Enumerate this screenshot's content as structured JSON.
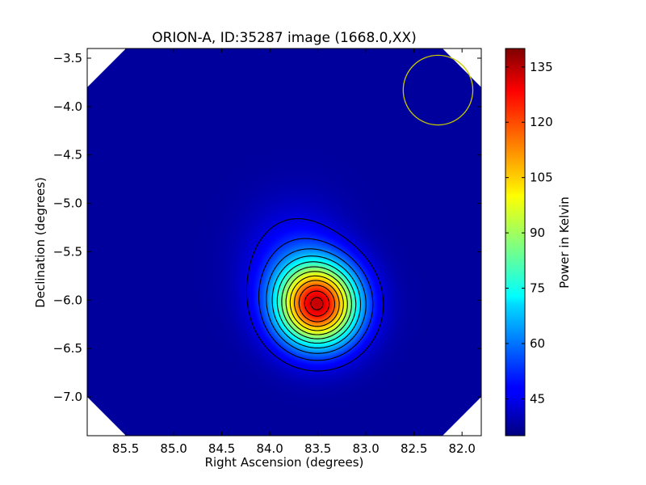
{
  "chart_data": {
    "type": "heatmap",
    "title": "ORION-A, ID:35287 image (1668.0,XX)",
    "xlabel": "Right Ascension (degrees)",
    "ylabel": "Declination (degrees)",
    "xlim": [
      85.9,
      81.8
    ],
    "ylim": [
      -7.4,
      -3.4
    ],
    "x_ticks": [
      85.5,
      85.0,
      84.5,
      84.0,
      83.5,
      83.0,
      82.5,
      82.0
    ],
    "x_tick_labels": [
      "85.5",
      "85.0",
      "84.5",
      "84.0",
      "83.5",
      "83.0",
      "82.5",
      "82.0"
    ],
    "y_ticks": [
      -3.5,
      -4.0,
      -4.5,
      -5.0,
      -5.5,
      -6.0,
      -6.5,
      -7.0
    ],
    "y_tick_labels": [
      "−3.5",
      "−4.0",
      "−4.5",
      "−5.0",
      "−5.5",
      "−6.0",
      "−6.5",
      "−7.0"
    ],
    "colorbar": {
      "label": "Power in Kelvin",
      "range": [
        35,
        140
      ],
      "ticks": [
        45,
        60,
        75,
        90,
        105,
        120,
        135
      ],
      "tick_labels": [
        "45",
        "60",
        "75",
        "90",
        "105",
        "120",
        "135"
      ],
      "colormap": "jet"
    },
    "background_level": 38,
    "sources": [
      {
        "center": [
          83.5,
          -6.05
        ],
        "peak": 95,
        "sigma_ra": 0.3,
        "sigma_dec": 0.3
      },
      {
        "center": [
          83.75,
          -5.6
        ],
        "peak": 12,
        "sigma_ra": 0.35,
        "sigma_dec": 0.4
      }
    ],
    "peak_value": 133,
    "contour_levels": [
      45,
      53,
      61,
      69,
      77,
      85,
      93,
      101,
      109,
      117,
      125,
      131
    ],
    "beam_circle": {
      "center": [
        82.25,
        -3.83
      ],
      "radius_deg": 0.36,
      "color": "#c8c800"
    },
    "masked_corners": true
  }
}
